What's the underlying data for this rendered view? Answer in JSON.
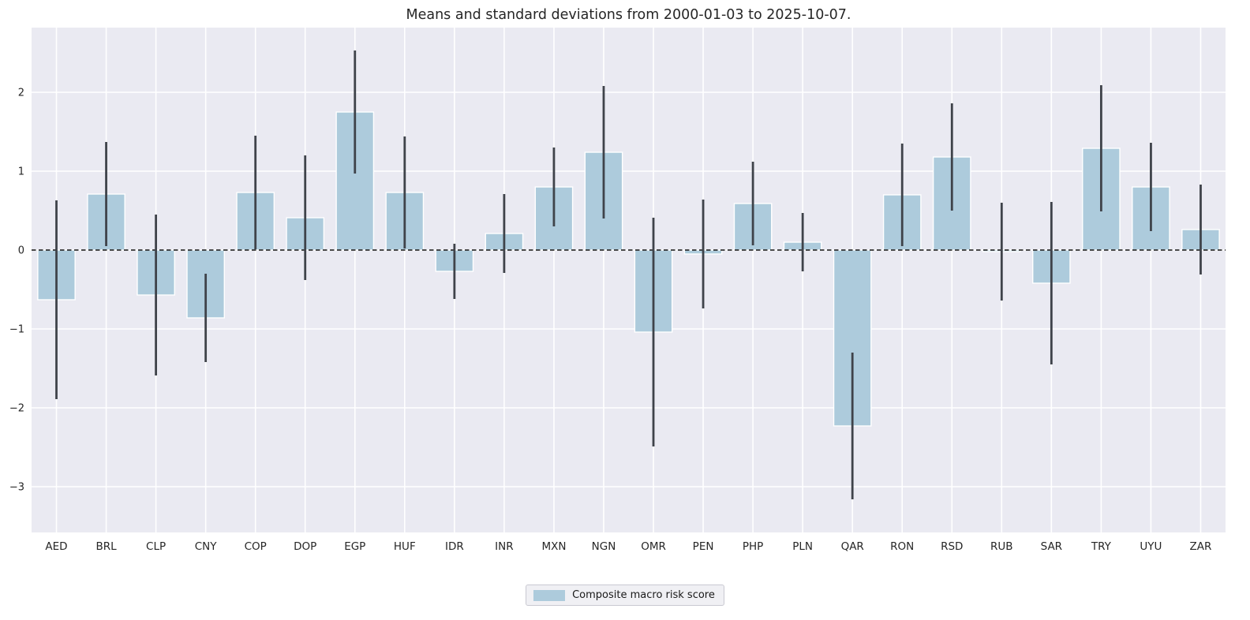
{
  "figure": {
    "title": "Means and standard deviations from 2000-01-03 to 2025-10-07."
  },
  "legend": {
    "label": "Composite macro risk score"
  },
  "chart_data": {
    "type": "bar",
    "title": "Means and standard deviations from 2000-01-03 to 2025-10-07.",
    "categories": [
      "AED",
      "BRL",
      "CLP",
      "CNY",
      "COP",
      "DOP",
      "EGP",
      "HUF",
      "IDR",
      "INR",
      "MXN",
      "NGN",
      "OMR",
      "PEN",
      "PHP",
      "PLN",
      "QAR",
      "RON",
      "RSD",
      "RUB",
      "SAR",
      "TRY",
      "UYU",
      "ZAR"
    ],
    "series": [
      {
        "name": "Composite macro risk score",
        "means": [
          -0.63,
          0.71,
          -0.57,
          -0.86,
          0.73,
          0.41,
          1.75,
          0.73,
          -0.27,
          0.21,
          0.8,
          1.24,
          -1.04,
          -0.05,
          0.59,
          0.1,
          -2.23,
          0.7,
          1.18,
          -0.02,
          -0.42,
          1.29,
          0.8,
          0.26
        ],
        "stds": [
          1.26,
          0.66,
          1.02,
          0.56,
          0.72,
          0.79,
          0.78,
          0.71,
          0.35,
          0.5,
          0.5,
          0.84,
          1.45,
          0.69,
          0.53,
          0.37,
          0.93,
          0.65,
          0.68,
          0.62,
          1.03,
          0.8,
          0.56,
          0.57
        ]
      }
    ],
    "error_bars": "mean ± 1 std",
    "xlabel": "",
    "ylabel": "",
    "ylim": [
      -3.58,
      2.82
    ],
    "yticks": [
      2,
      1,
      0,
      -1,
      -2,
      -3
    ],
    "grid": true,
    "zero_line": "dashed-black",
    "legend_position": "bottom-center",
    "bar_width_fraction": 0.75,
    "colors": {
      "bar": "#adcbdc",
      "bar_edge": "#ffffff",
      "error": "#3f434a",
      "plot_bg": "#eaeaf2",
      "grid": "#ffffff",
      "figure_bg": "#ffffff",
      "tick_label": "#262626",
      "zero_line": "#111111"
    }
  }
}
